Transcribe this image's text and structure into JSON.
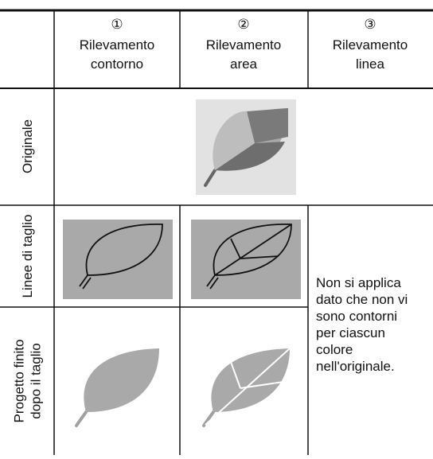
{
  "table": {
    "columns": [
      {
        "number": "①",
        "label": [
          "Rilevamento",
          "contorno"
        ]
      },
      {
        "number": "②",
        "label": [
          "Rilevamento",
          "area"
        ]
      },
      {
        "number": "③",
        "label": [
          "Rilevamento",
          "linea"
        ]
      }
    ],
    "rows": [
      {
        "label": [
          "Originale"
        ]
      },
      {
        "label": [
          "Linee di taglio"
        ]
      },
      {
        "label": [
          "Progetto finito",
          "dopo il taglio"
        ]
      }
    ],
    "note": [
      "Non si applica",
      "dato che non vi",
      "sono contorni",
      "per ciascun",
      "colore",
      "nell'originale."
    ]
  }
}
